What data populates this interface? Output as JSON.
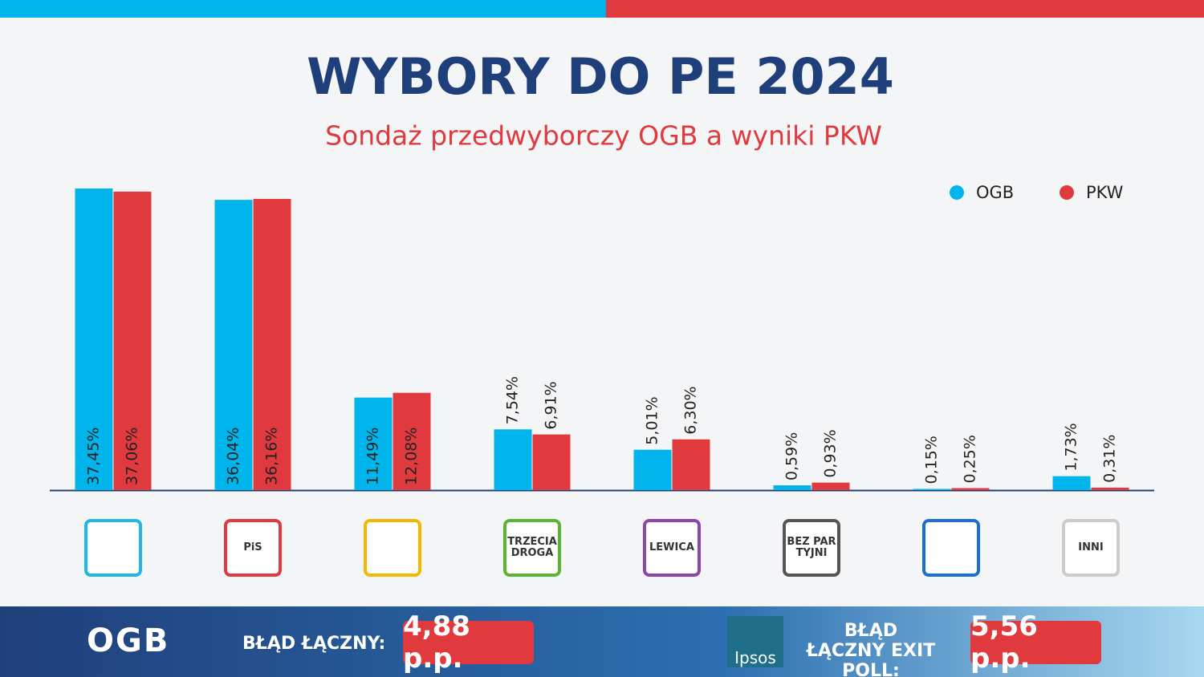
{
  "chart_data": {
    "type": "bar",
    "title": "WYBORY DO PE 2024",
    "subtitle": "Sondaż przedwyborczy OGB a wyniki PKW",
    "categories": [
      null,
      "PiS",
      null,
      "TRZECIA DROGA",
      "LEWICA",
      "BEZ PAR TYJNI",
      null,
      "INNI"
    ],
    "category_colors": [
      "#1fb6ea",
      "#e03a3e",
      "#f5b800",
      "#5cb531",
      "#8e44ad",
      "#555555",
      "#1c6fd1",
      "#cccccc"
    ],
    "ylim": [
      0,
      40
    ],
    "legend": "top-right",
    "series": [
      {
        "name": "OGB",
        "color": "#00b5ec",
        "values": [
          37.45,
          36.04,
          11.49,
          7.54,
          5.01,
          0.59,
          0.15,
          1.73
        ],
        "value_labels": [
          "37,45%",
          "36,04%",
          "11,49%",
          "7,54%",
          "5,01%",
          "0,59%",
          "0,15%",
          "1,73%"
        ]
      },
      {
        "name": "PKW",
        "color": "#e03a3e",
        "values": [
          37.06,
          36.16,
          12.08,
          6.91,
          6.3,
          0.93,
          0.25,
          0.31
        ],
        "value_labels": [
          "37,06%",
          "36,16%",
          "12,08%",
          "6,91%",
          "6,30%",
          "0,93%",
          "0,25%",
          "0,31%"
        ]
      }
    ]
  },
  "footer": {
    "brand": "OGB",
    "error_label": "BŁĄD ŁĄCZNY:",
    "error_value": "4,88 p.p.",
    "exit_brand": "Ipsos",
    "exit_error_label": "BŁĄD ŁĄCZNY EXIT POLL:",
    "exit_error_value": "5,56 p.p."
  }
}
